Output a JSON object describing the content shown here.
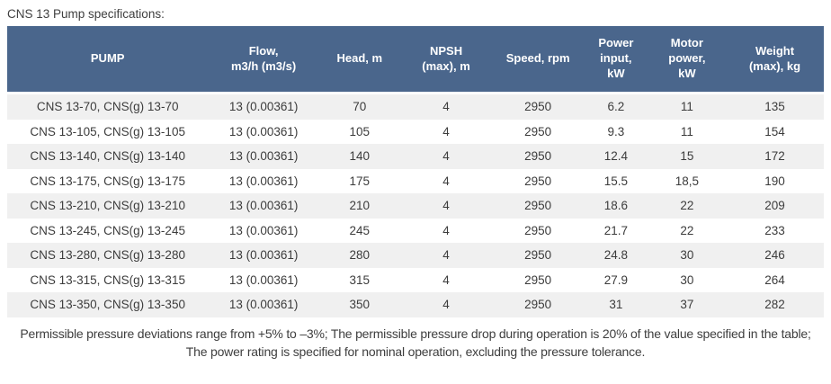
{
  "page": {
    "title": "CNS 13 Pump specifications:"
  },
  "table": {
    "columns": [
      {
        "key": "pump",
        "label": "PUMP"
      },
      {
        "key": "flow",
        "label": "Flow,\nm3/h (m3/s)"
      },
      {
        "key": "head",
        "label": "Head, m"
      },
      {
        "key": "npsh",
        "label": "NPSH\n(max), m"
      },
      {
        "key": "speed",
        "label": "Speed, rpm"
      },
      {
        "key": "power",
        "label": "Power\ninput,\nkW"
      },
      {
        "key": "motor",
        "label": "Motor\npower,\nkW"
      },
      {
        "key": "weight",
        "label": "Weight\n(max), kg"
      }
    ],
    "rows": [
      [
        "CNS 13-70, CNS(g) 13-70",
        "13 (0.00361)",
        "70",
        "4",
        "2950",
        "6.2",
        "11",
        "135"
      ],
      [
        "CNS 13-105, CNS(g) 13-105",
        "13 (0.00361)",
        "105",
        "4",
        "2950",
        "9.3",
        "11",
        "154"
      ],
      [
        "CNS 13-140, CNS(g) 13-140",
        "13 (0.00361)",
        "140",
        "4",
        "2950",
        "12.4",
        "15",
        "172"
      ],
      [
        "CNS 13-175, CNS(g) 13-175",
        "13 (0.00361)",
        "175",
        "4",
        "2950",
        "15.5",
        "18,5",
        "190"
      ],
      [
        "CNS 13-210, CNS(g) 13-210",
        "13 (0.00361)",
        "210",
        "4",
        "2950",
        "18.6",
        "22",
        "209"
      ],
      [
        "CNS 13-245, CNS(g) 13-245",
        "13 (0.00361)",
        "245",
        "4",
        "2950",
        "21.7",
        "22",
        "233"
      ],
      [
        "CNS 13-280, CNS(g) 13-280",
        "13 (0.00361)",
        "280",
        "4",
        "2950",
        "24.8",
        "30",
        "246"
      ],
      [
        "CNS 13-315, CNS(g) 13-315",
        "13 (0.00361)",
        "315",
        "4",
        "2950",
        "27.9",
        "30",
        "264"
      ],
      [
        "CNS 13-350, CNS(g) 13-350",
        "13 (0.00361)",
        "350",
        "4",
        "2950",
        "31",
        "37",
        "282"
      ]
    ]
  },
  "footnote": {
    "text": "Permissible pressure deviations range from +5% to –3%; The permissible pressure drop during operation is 20% of the value specified in the table; The power rating is specified for nominal operation, excluding the pressure tolerance."
  },
  "colors": {
    "header_bg": "#4a668c",
    "header_text": "#ffffff",
    "row_stripe": "#f0f0f0",
    "row_plain": "#ffffff",
    "body_text": "#3c3c3c"
  }
}
